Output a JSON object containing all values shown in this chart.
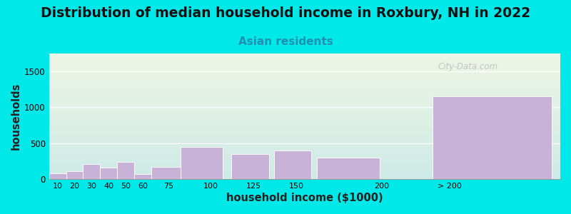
{
  "title": "Distribution of median household income in Roxbury, NH in 2022",
  "subtitle": "Asian residents",
  "xlabel": "household income ($1000)",
  "ylabel": "households",
  "categories": [
    "10",
    "20",
    "30",
    "40",
    "50",
    "60",
    "75",
    "100",
    "125",
    "150",
    "200",
    "> 200"
  ],
  "bar_lefts": [
    5,
    15,
    25,
    35,
    45,
    55,
    65,
    82,
    112,
    137,
    162,
    230
  ],
  "bar_widths": [
    10,
    10,
    10,
    10,
    10,
    10,
    17,
    25,
    22,
    22,
    37,
    70
  ],
  "values": [
    75,
    110,
    210,
    155,
    240,
    70,
    165,
    445,
    350,
    400,
    300,
    1150
  ],
  "bar_color": "#c9b2d8",
  "background_outer": "#00e8e8",
  "background_top_color": "#eef5e4",
  "background_bottom_color": "#cdeae6",
  "ylim": [
    0,
    1750
  ],
  "yticks": [
    0,
    500,
    1000,
    1500
  ],
  "xtick_positions": [
    10,
    20,
    30,
    40,
    50,
    60,
    75,
    100,
    125,
    150,
    200
  ],
  "xtick_extra": 240,
  "xtick_extra_label": "> 200",
  "xlim": [
    5,
    305
  ],
  "watermark": "City-Data.com",
  "title_fontsize": 13.5,
  "subtitle_fontsize": 11,
  "subtitle_color": "#2090b0",
  "axis_label_fontsize": 10.5
}
